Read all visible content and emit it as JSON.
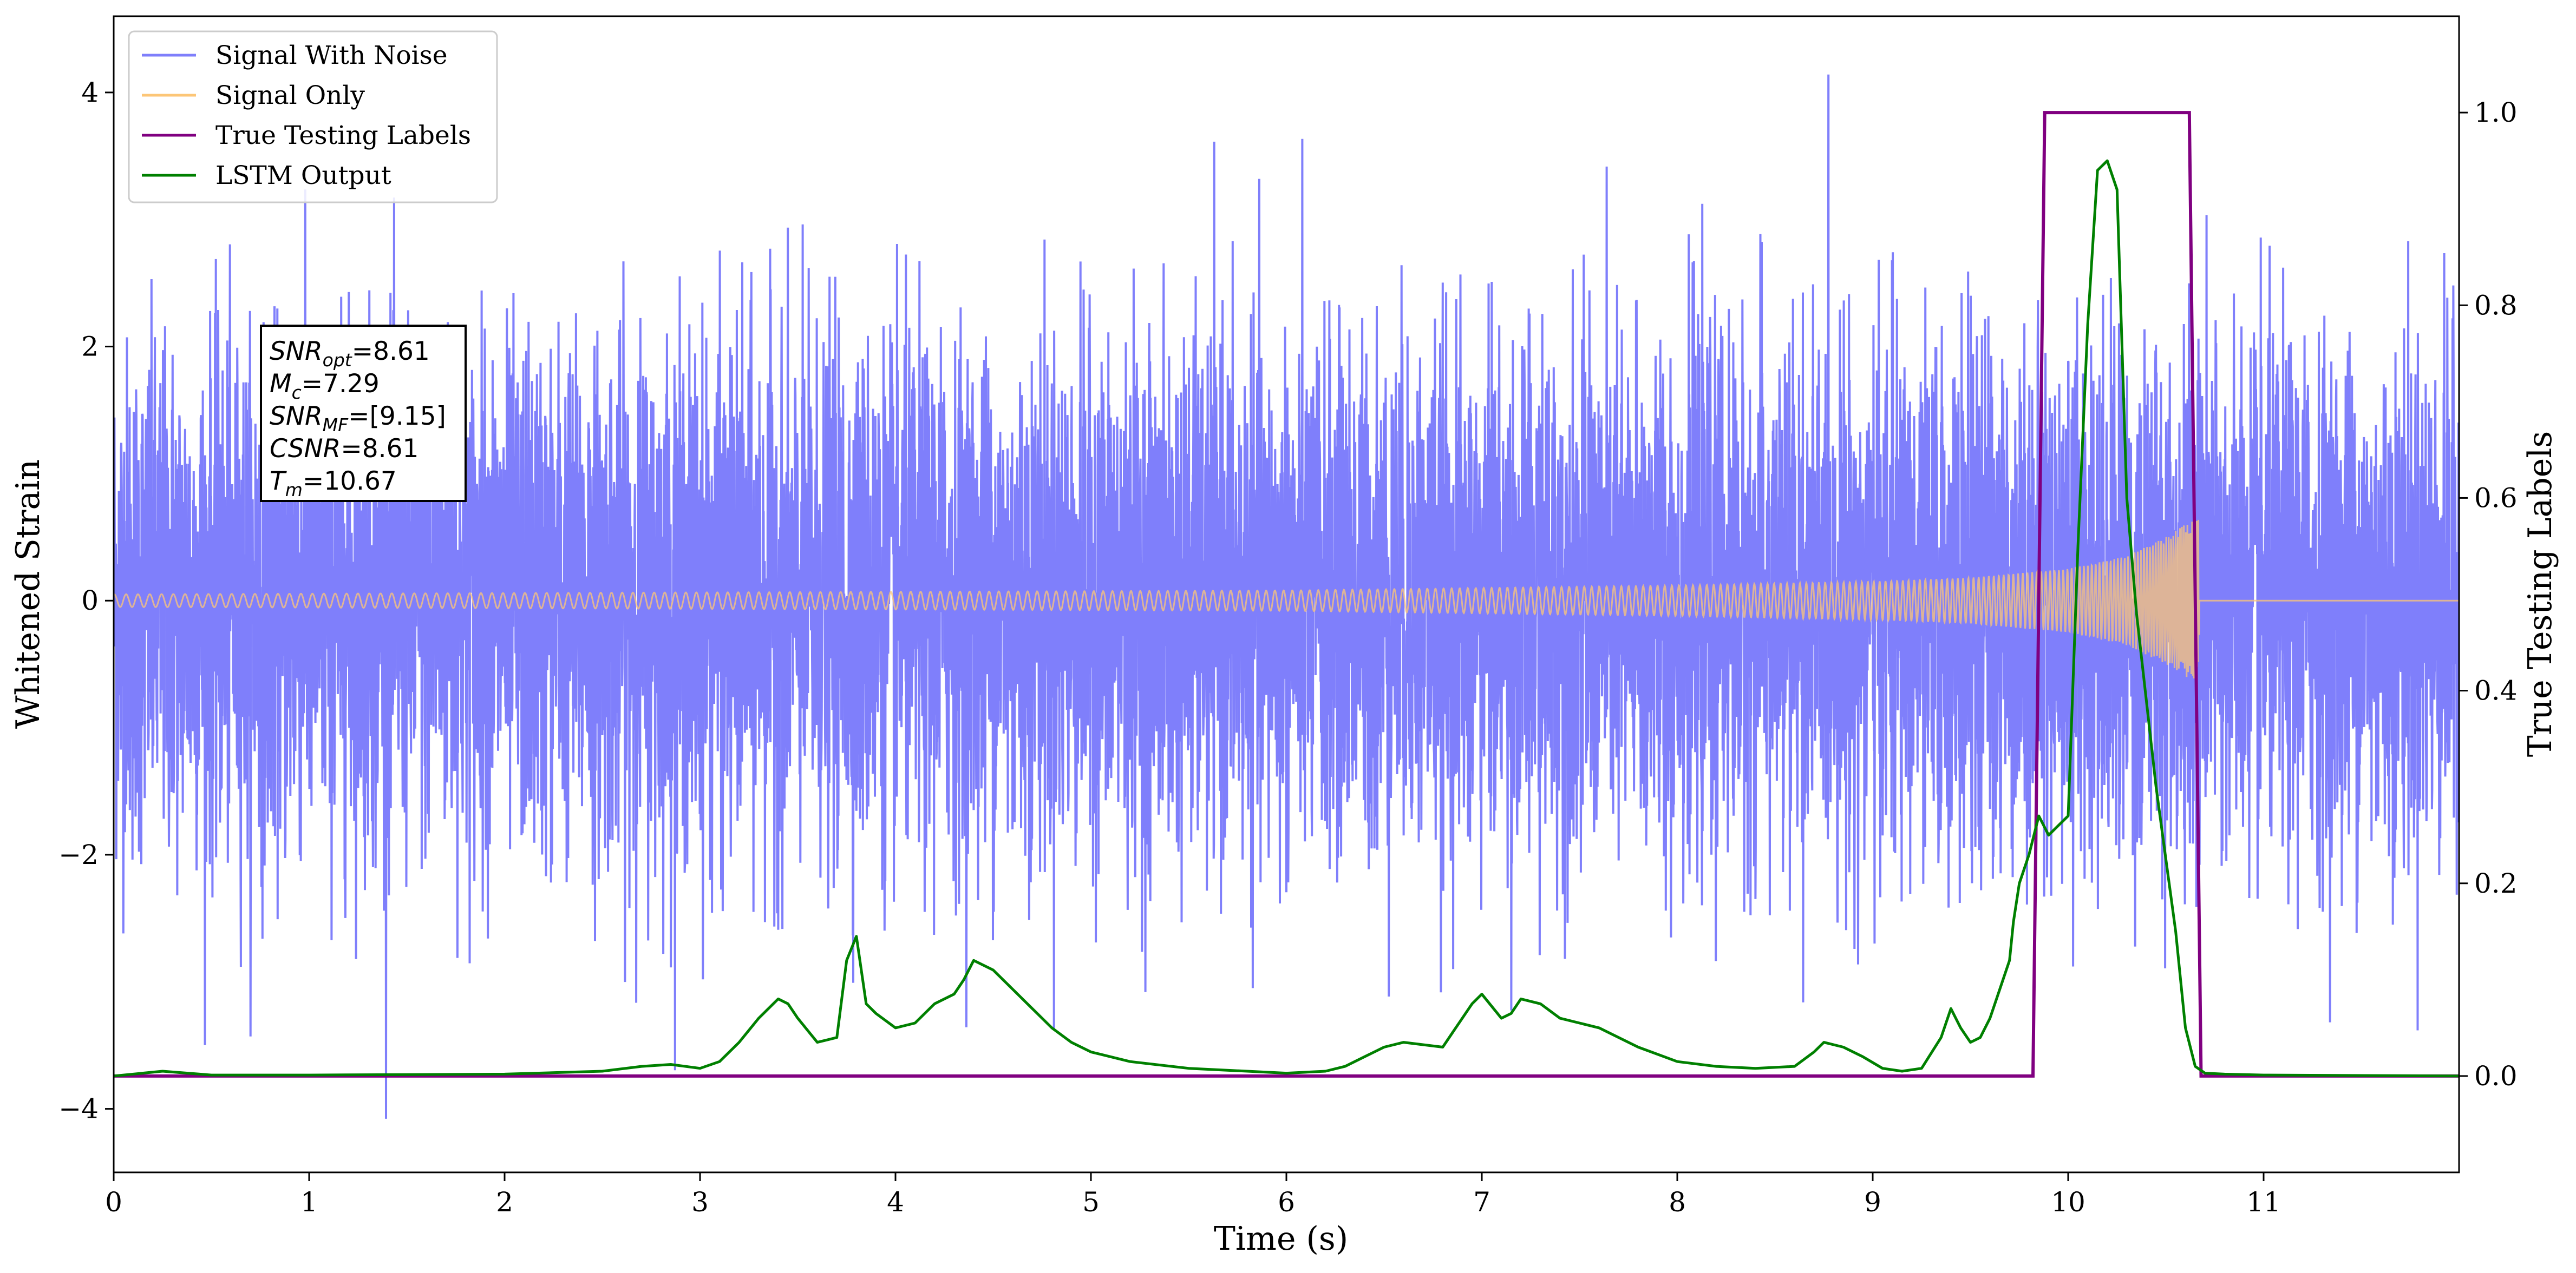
{
  "chart_data": {
    "type": "line",
    "xlabel": "Time (s)",
    "ylabel_left": "Whitened Strain",
    "ylabel_right": "True Testing Labels",
    "xlim": [
      0,
      12
    ],
    "ylim_left": [
      -4.5,
      4.6
    ],
    "ylim_right": [
      -0.1,
      1.1
    ],
    "x_ticks": [
      0,
      1,
      2,
      3,
      4,
      5,
      6,
      7,
      8,
      9,
      10,
      11
    ],
    "y_ticks_left": [
      -4,
      -2,
      0,
      2,
      4
    ],
    "y_tick_labels_left": [
      "−4",
      "−2",
      "0",
      "2",
      "4"
    ],
    "y_ticks_right": [
      0.0,
      0.2,
      0.4,
      0.6,
      0.8,
      1.0
    ],
    "y_tick_labels_right": [
      "0.0",
      "0.2",
      "0.4",
      "0.6",
      "0.8",
      "1.0"
    ],
    "grid": false,
    "legend_position": "top-left",
    "series": [
      {
        "name": "Signal With Noise",
        "axis": "left",
        "color": "#7f7ffb",
        "noise_std": 1.0,
        "x_range": [
          0,
          12
        ]
      },
      {
        "name": "Signal Only",
        "axis": "left",
        "color": "#fcc677",
        "envelope_x": [
          0,
          2,
          4,
          6,
          7,
          8,
          9,
          9.5,
          10,
          10.3,
          10.5,
          10.6,
          10.67
        ],
        "envelope_amplitude": [
          0.05,
          0.06,
          0.07,
          0.08,
          0.1,
          0.12,
          0.15,
          0.18,
          0.25,
          0.35,
          0.5,
          0.6,
          0.65
        ]
      },
      {
        "name": "True Testing Labels",
        "axis": "right",
        "color": "#800080",
        "x": [
          0,
          9.82,
          9.88,
          10.62,
          10.68,
          12
        ],
        "y": [
          0,
          0,
          1,
          1,
          0,
          0
        ]
      },
      {
        "name": "LSTM Output",
        "axis": "right",
        "color": "#008000",
        "x": [
          0,
          0.25,
          0.5,
          1,
          2,
          2.5,
          2.7,
          2.85,
          3.0,
          3.1,
          3.2,
          3.3,
          3.4,
          3.45,
          3.5,
          3.6,
          3.7,
          3.75,
          3.8,
          3.85,
          3.9,
          4.0,
          4.1,
          4.2,
          4.3,
          4.35,
          4.4,
          4.5,
          4.6,
          4.7,
          4.8,
          4.9,
          5.0,
          5.2,
          5.5,
          6.0,
          6.2,
          6.3,
          6.4,
          6.5,
          6.6,
          6.8,
          6.85,
          6.9,
          6.95,
          7.0,
          7.1,
          7.15,
          7.2,
          7.3,
          7.4,
          7.5,
          7.6,
          7.8,
          8.0,
          8.2,
          8.4,
          8.6,
          8.7,
          8.75,
          8.85,
          8.95,
          9.05,
          9.15,
          9.25,
          9.35,
          9.4,
          9.45,
          9.5,
          9.55,
          9.6,
          9.65,
          9.7,
          9.72,
          9.75,
          9.8,
          9.85,
          9.9,
          9.95,
          10.0,
          10.05,
          10.1,
          10.15,
          10.2,
          10.25,
          10.3,
          10.35,
          10.45,
          10.55,
          10.6,
          10.65,
          10.7,
          10.8,
          11.0,
          12.0
        ],
        "y": [
          0,
          0.005,
          0.001,
          0.001,
          0.002,
          0.005,
          0.01,
          0.012,
          0.008,
          0.015,
          0.035,
          0.06,
          0.08,
          0.075,
          0.06,
          0.035,
          0.04,
          0.12,
          0.145,
          0.075,
          0.065,
          0.05,
          0.055,
          0.075,
          0.085,
          0.1,
          0.12,
          0.11,
          0.09,
          0.07,
          0.05,
          0.035,
          0.025,
          0.015,
          0.008,
          0.003,
          0.005,
          0.01,
          0.02,
          0.03,
          0.035,
          0.03,
          0.045,
          0.06,
          0.075,
          0.085,
          0.06,
          0.065,
          0.08,
          0.075,
          0.06,
          0.055,
          0.05,
          0.03,
          0.015,
          0.01,
          0.008,
          0.01,
          0.025,
          0.035,
          0.03,
          0.02,
          0.008,
          0.005,
          0.008,
          0.04,
          0.07,
          0.05,
          0.035,
          0.04,
          0.06,
          0.09,
          0.12,
          0.16,
          0.2,
          0.23,
          0.27,
          0.25,
          0.26,
          0.27,
          0.55,
          0.78,
          0.94,
          0.95,
          0.92,
          0.6,
          0.48,
          0.3,
          0.15,
          0.05,
          0.01,
          0.003,
          0.002,
          0.001,
          0
        ]
      }
    ],
    "annotations": {
      "lines": [
        {
          "main": "SNR",
          "sub": "opt",
          "value": "=8.61"
        },
        {
          "main": "M",
          "sub": "c",
          "value": "=7.29"
        },
        {
          "main": "SNR",
          "sub": "MF",
          "value": "=[9.15]"
        },
        {
          "main": "CSNR",
          "sub": "",
          "value": "=8.61"
        },
        {
          "main": "T",
          "sub": "m",
          "value": "=10.67"
        }
      ]
    }
  }
}
